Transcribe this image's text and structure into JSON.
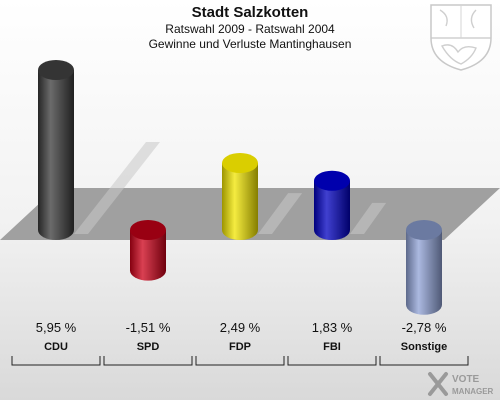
{
  "header": {
    "title": "Stadt Salzkotten",
    "subtitle": "Ratswahl 2009 - Ratswahl 2004",
    "caption": "Gewinne und Verluste Mantinghausen"
  },
  "logo": {
    "line1": "VOTE",
    "line2": "MANAGER"
  },
  "chart_data": {
    "type": "bar",
    "categories": [
      "CDU",
      "SPD",
      "FDP",
      "FBI",
      "Sonstige"
    ],
    "values": [
      5.95,
      -1.51,
      2.49,
      1.83,
      -2.78
    ],
    "value_labels": [
      "5,95 %",
      "-1,51 %",
      "2,49 %",
      "1,83 %",
      "-2,78 %"
    ],
    "colors": [
      "#3a3a3a",
      "#cc0018",
      "#f2e500",
      "#0000c0",
      "#8fa2d6"
    ],
    "title": "Stadt Salzkotten",
    "subtitle": "Ratswahl 2009 - Ratswahl 2004",
    "xlabel": "",
    "ylabel": "",
    "grid": false,
    "legend": "none"
  }
}
